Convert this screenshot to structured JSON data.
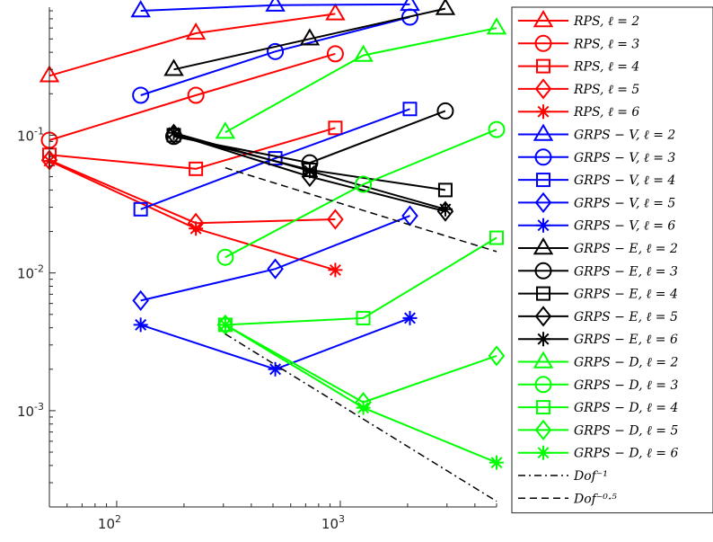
{
  "chart_data": {
    "type": "line",
    "title": "",
    "xlabel": "",
    "ylabel": "",
    "xscale": "log",
    "yscale": "log",
    "xlim": [
      50,
      5000
    ],
    "ylim": [
      0.0002,
      0.85
    ],
    "grid": false,
    "legend_position": "right",
    "x_ticks": [
      {
        "value": 100,
        "base": "10",
        "exp": "2"
      },
      {
        "value": 1000,
        "base": "10",
        "exp": "3"
      }
    ],
    "y_ticks": [
      {
        "value": 0.1,
        "base": "10",
        "exp": "-1"
      },
      {
        "value": 0.01,
        "base": "10",
        "exp": "-2"
      },
      {
        "value": 0.001,
        "base": "10",
        "exp": "-3"
      }
    ],
    "series": [
      {
        "name": "RPS, ℓ = 2",
        "color": "#ff0000",
        "marker": "triangle",
        "x": [
          50,
          226,
          950
        ],
        "y": [
          0.27,
          0.55,
          0.76
        ]
      },
      {
        "name": "RPS, ℓ = 3",
        "color": "#ff0000",
        "marker": "circle",
        "x": [
          50,
          226,
          950
        ],
        "y": [
          0.092,
          0.195,
          0.39
        ]
      },
      {
        "name": "RPS, ℓ = 4",
        "color": "#ff0000",
        "marker": "square",
        "x": [
          50,
          226,
          950
        ],
        "y": [
          0.072,
          0.057,
          0.113
        ]
      },
      {
        "name": "RPS, ℓ = 5",
        "color": "#ff0000",
        "marker": "diamond",
        "x": [
          50,
          226,
          950
        ],
        "y": [
          0.066,
          0.023,
          0.0245
        ]
      },
      {
        "name": "RPS, ℓ = 6",
        "color": "#ff0000",
        "marker": "asterisk",
        "x": [
          50,
          226,
          950
        ],
        "y": [
          0.065,
          0.021,
          0.0105
        ]
      },
      {
        "name": "GRPS − V, ℓ = 2",
        "color": "#0000ff",
        "marker": "triangle",
        "x": [
          128,
          512,
          2048
        ],
        "y": [
          0.8,
          0.88,
          0.89
        ]
      },
      {
        "name": "GRPS − V, ℓ = 3",
        "color": "#0000ff",
        "marker": "circle",
        "x": [
          128,
          512,
          2048
        ],
        "y": [
          0.195,
          0.405,
          0.72
        ]
      },
      {
        "name": "GRPS − V, ℓ = 4",
        "color": "#0000ff",
        "marker": "square",
        "x": [
          128,
          512,
          2048
        ],
        "y": [
          0.029,
          0.068,
          0.155
        ]
      },
      {
        "name": "GRPS − V, ℓ = 5",
        "color": "#0000ff",
        "marker": "diamond",
        "x": [
          128,
          512,
          2048
        ],
        "y": [
          0.0063,
          0.0107,
          0.026
        ]
      },
      {
        "name": "GRPS − V, ℓ = 6",
        "color": "#0000ff",
        "marker": "asterisk",
        "x": [
          128,
          512,
          2048
        ],
        "y": [
          0.0042,
          0.002,
          0.0047
        ]
      },
      {
        "name": "GRPS − E, ℓ = 2",
        "color": "#000000",
        "marker": "triangle",
        "x": [
          180,
          730,
          2950
        ],
        "y": [
          0.3,
          0.5,
          0.83
        ]
      },
      {
        "name": "GRPS − E, ℓ = 3",
        "color": "#000000",
        "marker": "circle",
        "x": [
          180,
          730,
          2950
        ],
        "y": [
          0.098,
          0.063,
          0.15
        ]
      },
      {
        "name": "GRPS − E, ℓ = 4",
        "color": "#000000",
        "marker": "square",
        "x": [
          180,
          730,
          2950
        ],
        "y": [
          0.1,
          0.056,
          0.04
        ]
      },
      {
        "name": "GRPS − E, ℓ = 5",
        "color": "#000000",
        "marker": "diamond",
        "x": [
          180,
          730,
          2950
        ],
        "y": [
          0.102,
          0.05,
          0.028
        ]
      },
      {
        "name": "GRPS − E, ℓ = 6",
        "color": "#000000",
        "marker": "asterisk",
        "x": [
          180,
          730,
          2950
        ],
        "y": [
          0.104,
          0.055,
          0.029
        ]
      },
      {
        "name": "GRPS − D, ℓ = 2",
        "color": "#00ff00",
        "marker": "triangle",
        "x": [
          306,
          1267,
          5000
        ],
        "y": [
          0.105,
          0.38,
          0.6
        ]
      },
      {
        "name": "GRPS − D, ℓ = 3",
        "color": "#00ff00",
        "marker": "circle",
        "x": [
          306,
          1267,
          5000
        ],
        "y": [
          0.013,
          0.044,
          0.11
        ]
      },
      {
        "name": "GRPS − D, ℓ = 4",
        "color": "#00ff00",
        "marker": "square",
        "x": [
          306,
          1267,
          5000
        ],
        "y": [
          0.0042,
          0.0047,
          0.018
        ]
      },
      {
        "name": "GRPS − D, ℓ = 5",
        "color": "#00ff00",
        "marker": "diamond",
        "x": [
          306,
          1267,
          5000
        ],
        "y": [
          0.0042,
          0.00115,
          0.0025
        ]
      },
      {
        "name": "GRPS − D, ℓ = 6",
        "color": "#00ff00",
        "marker": "asterisk",
        "x": [
          306,
          1267,
          5000
        ],
        "y": [
          0.0042,
          0.00105,
          0.00042
        ]
      },
      {
        "name": "Dof⁻¹",
        "color": "#000000",
        "marker": "none",
        "dash": "dashdot",
        "x": [
          306,
          5000
        ],
        "y": [
          0.0036,
          0.00022
        ]
      },
      {
        "name": "Dof⁻⁰·⁵",
        "color": "#000000",
        "marker": "none",
        "dash": "dash",
        "x": [
          306,
          5000
        ],
        "y": [
          0.058,
          0.0143
        ]
      }
    ]
  }
}
